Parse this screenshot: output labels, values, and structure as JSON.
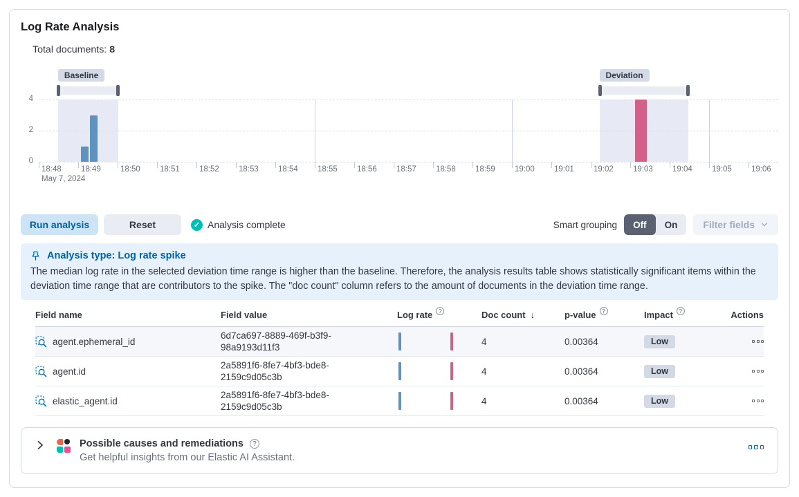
{
  "header": {
    "title": "Log Rate Analysis",
    "total_documents_label": "Total documents:",
    "total_documents_value": "8"
  },
  "chart_data": {
    "type": "bar",
    "y_axis": {
      "max": 4,
      "ticks": [
        4,
        2,
        0
      ]
    },
    "x_axis": {
      "ticks": [
        "18:48",
        "18:49",
        "18:50",
        "18:51",
        "18:52",
        "18:53",
        "18:54",
        "18:55",
        "18:56",
        "18:57",
        "18:58",
        "18:59",
        "19:00",
        "19:01",
        "19:02",
        "19:03",
        "19:04",
        "19:05",
        "19:06"
      ],
      "date_label": "May 7, 2024",
      "major_gridline_tick_indexes": [
        7,
        12,
        17
      ]
    },
    "brushes": [
      {
        "name": "baseline",
        "label": "Baseline",
        "from_min": 0.49,
        "to_min": 2.02
      },
      {
        "name": "deviation",
        "label": "Deviation",
        "from_min": 14.22,
        "to_min": 16.48
      }
    ],
    "series": [
      {
        "name": "baseline",
        "color": "#6092C0",
        "bars": [
          {
            "from_min": 1.07,
            "to_min": 1.27,
            "value": 1
          },
          {
            "from_min": 1.29,
            "to_min": 1.5,
            "value": 3
          }
        ]
      },
      {
        "name": "deviation",
        "color": "#D36086",
        "bars": [
          {
            "from_min": 15.12,
            "to_min": 15.42,
            "value": 4
          }
        ]
      }
    ],
    "style": {
      "region_fill": "#E7EAF4",
      "brush_track": "#E9EDF3",
      "brush_handle": "#5A6170"
    }
  },
  "controls": {
    "run_analysis_label": "Run analysis",
    "reset_label": "Reset",
    "status_label": "Analysis complete",
    "smart_grouping_label": "Smart grouping",
    "toggle_off_label": "Off",
    "toggle_on_label": "On",
    "filter_fields_label": "Filter fields"
  },
  "callout": {
    "title": "Analysis type: Log rate spike",
    "body": "The median log rate in the selected deviation time range is higher than the baseline. Therefore, the analysis results table shows statistically significant items within the deviation time range that are contributors to the spike. The \"doc count\" column refers to the amount of documents in the deviation time range."
  },
  "table": {
    "columns": [
      {
        "label": "Field name"
      },
      {
        "label": "Field value"
      },
      {
        "label": "Log rate",
        "help": true
      },
      {
        "label": "Doc count",
        "sorted": "desc"
      },
      {
        "label": "p-value",
        "help": true
      },
      {
        "label": "Impact",
        "help": true
      },
      {
        "label": "Actions"
      }
    ],
    "rows": [
      {
        "field_name": "agent.ephemeral_id",
        "field_value": "6d7ca697-8889-469f-b3f9-98a9193d11f3",
        "doc_count": 4,
        "p_value": "0.00364",
        "impact": "Low"
      },
      {
        "field_name": "agent.id",
        "field_value": "2a5891f6-8fe7-4bf3-bde8-2159c9d05c3b",
        "doc_count": 4,
        "p_value": "0.00364",
        "impact": "Low"
      },
      {
        "field_name": "elastic_agent.id",
        "field_value": "2a5891f6-8fe7-4bf3-bde8-2159c9d05c3b",
        "doc_count": 4,
        "p_value": "0.00364",
        "impact": "Low"
      }
    ]
  },
  "insights": {
    "title": "Possible causes and remediations",
    "subtitle": "Get helpful insights from our Elastic AI Assistant."
  },
  "icons": {
    "check": "✓",
    "sort_desc": "↓",
    "help": "?"
  },
  "colors": {
    "primary": "#0071C2",
    "primary_text": "#0061A6",
    "success": "#00BFB3",
    "baseline_bar": "#6092C0",
    "deviation_bar": "#D36086",
    "callout_bg": "#E7F1FB",
    "badge_bg": "#D3DAE6"
  }
}
